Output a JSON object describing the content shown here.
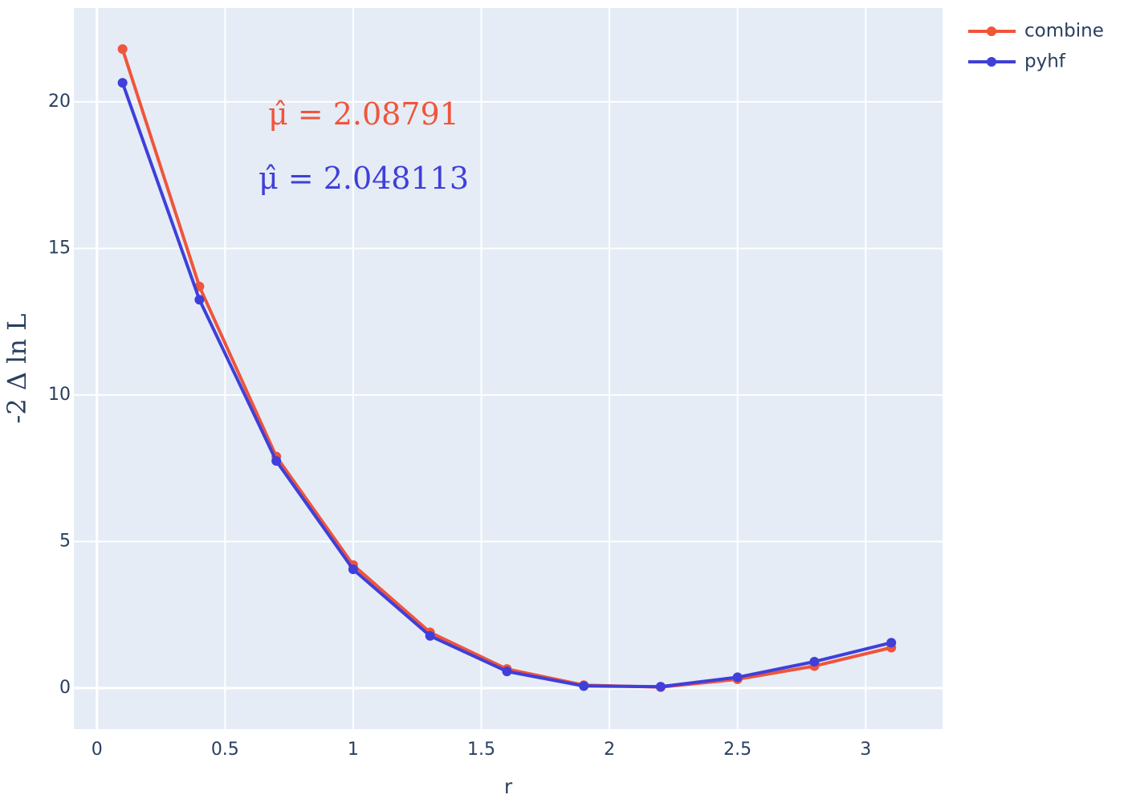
{
  "chart_data": {
    "type": "line",
    "xlabel": "r",
    "ylabel": "-2 Δ ln L",
    "xlim": [
      -0.09,
      3.3
    ],
    "ylim": [
      -1.4,
      23.2
    ],
    "xticks": [
      0,
      0.5,
      1,
      1.5,
      2,
      2.5,
      3
    ],
    "xtick_labels": [
      "0",
      "0.5",
      "1",
      "1.5",
      "2",
      "2.5",
      "3"
    ],
    "yticks": [
      0,
      5,
      10,
      15,
      20
    ],
    "ytick_labels": [
      "0",
      "5",
      "10",
      "15",
      "20"
    ],
    "grid": true,
    "legend_position": "top-right",
    "x": [
      0.1,
      0.4,
      0.7,
      1.0,
      1.3,
      1.6,
      1.9,
      2.2,
      2.5,
      2.8,
      3.1
    ],
    "series": [
      {
        "name": "combine",
        "color": "#ef553b",
        "values": [
          21.8,
          13.7,
          7.9,
          4.2,
          1.9,
          0.65,
          0.1,
          0.03,
          0.3,
          0.75,
          1.38
        ]
      },
      {
        "name": "pyhf",
        "color": "#3f3fda",
        "values": [
          20.65,
          13.25,
          7.75,
          4.05,
          1.78,
          0.57,
          0.07,
          0.05,
          0.37,
          0.9,
          1.55
        ]
      }
    ],
    "annotations": [
      {
        "text": "μ̂ = 2.08791",
        "color": "#ef553b"
      },
      {
        "text": "μ̂ = 2.048113",
        "color": "#3f3fda"
      }
    ]
  },
  "colors": {
    "plot_background": "#e5ecf6",
    "grid": "#ffffff",
    "text": "#2a3f5f"
  }
}
